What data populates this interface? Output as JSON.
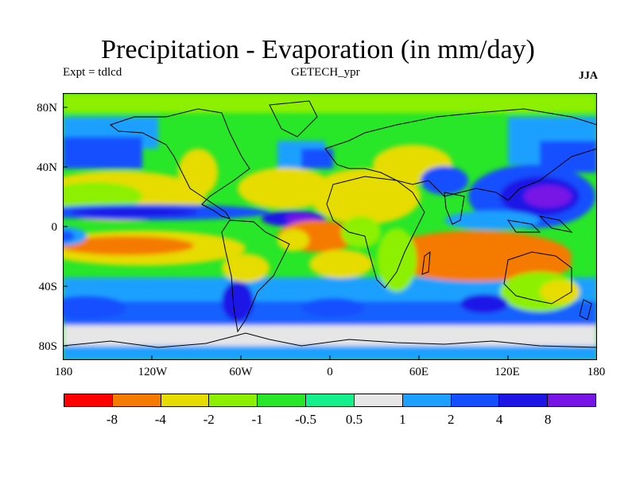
{
  "title": "Precipitation - Evaporation (in mm/day)",
  "subtitle_left": "Expt = tdlcd",
  "subtitle_center": "GETECH_ypr",
  "subtitle_right": "JJA",
  "y_ticks": [
    "80N",
    "40N",
    "0",
    "40S",
    "80S"
  ],
  "x_ticks": [
    "180",
    "120W",
    "60W",
    "0",
    "60E",
    "120E",
    "180"
  ],
  "colorbar": {
    "colors": [
      "#ff0000",
      "#f47a00",
      "#e6dc00",
      "#8cf000",
      "#28e628",
      "#14f08c",
      "#e6e6e6",
      "#1ea0ff",
      "#1450ff",
      "#1e14e6",
      "#7814e6"
    ],
    "labels": [
      "-8",
      "-4",
      "-2",
      "-1",
      "-0.5",
      "0.5",
      "1",
      "2",
      "4",
      "8"
    ]
  },
  "chart_data": {
    "type": "heatmap",
    "title": "Precipitation - Evaporation (in mm/day)",
    "x_range": [
      -180,
      180
    ],
    "y_range": [
      -90,
      90
    ],
    "levels": [
      -8,
      -4,
      -2,
      -1,
      -0.5,
      0.5,
      1,
      2,
      4,
      8
    ],
    "x_ticks": [
      -180,
      -120,
      -60,
      0,
      60,
      120,
      180
    ],
    "y_ticks": [
      80,
      40,
      0,
      -40,
      -80
    ],
    "projection": "cylindrical equidistant",
    "grid": false,
    "legend": "bottom"
  }
}
